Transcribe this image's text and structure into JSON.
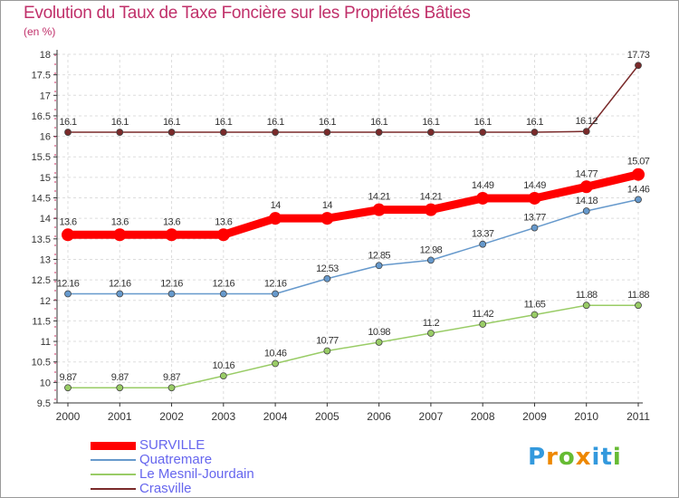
{
  "header": {
    "title": "Evolution du Taux de Taxe Foncière sur les Propriétés Bâties",
    "unit": "(en %)"
  },
  "chart_data": {
    "type": "line",
    "title": "Evolution du Taux de Taxe Foncière sur les Propriétés Bâties",
    "ylabel": "(en %)",
    "xlabel": "",
    "ylim": [
      9.5,
      18
    ],
    "yticks": [
      9.5,
      10,
      10.5,
      11,
      11.5,
      12,
      12.5,
      13,
      13.5,
      14,
      14.5,
      15,
      15.5,
      16,
      16.5,
      17,
      17.5,
      18
    ],
    "ytick_labels": [
      "9.5",
      "10",
      "10.5",
      "11",
      "11.5",
      "12",
      "12.5",
      "13",
      "13.5",
      "14",
      "14.5",
      "15",
      "15.5",
      "16",
      "16.5",
      "17",
      "17.5",
      "18"
    ],
    "grid": true,
    "legend_position": "bottom-left",
    "categories": [
      "2000",
      "2001",
      "2002",
      "2003",
      "2004",
      "2005",
      "2006",
      "2007",
      "2008",
      "2009",
      "2010",
      "2011"
    ],
    "series": [
      {
        "name": "SURVILLE",
        "color": "#ff0000",
        "emphasis": true,
        "values": [
          13.6,
          13.6,
          13.6,
          13.6,
          14,
          14,
          14.21,
          14.21,
          14.49,
          14.49,
          14.77,
          15.07
        ],
        "labels": [
          "13.6",
          "13.6",
          "13.6",
          "13.6",
          "14",
          "14",
          "14.21",
          "14.21",
          "14.49",
          "14.49",
          "14.77",
          "15.07"
        ]
      },
      {
        "name": "Quatremare",
        "color": "#6699cc",
        "emphasis": false,
        "values": [
          12.16,
          12.16,
          12.16,
          12.16,
          12.16,
          12.53,
          12.85,
          12.98,
          13.37,
          13.77,
          14.18,
          14.46
        ],
        "labels": [
          "12.16",
          "12.16",
          "12.16",
          "12.16",
          "12.16",
          "12.53",
          "12.85",
          "12.98",
          "13.37",
          "13.77",
          "14.18",
          "14.46"
        ]
      },
      {
        "name": "Le Mesnil-Jourdain",
        "color": "#99cc66",
        "emphasis": false,
        "values": [
          9.87,
          9.87,
          9.87,
          10.16,
          10.46,
          10.77,
          10.98,
          11.2,
          11.42,
          11.65,
          11.88,
          11.88
        ],
        "labels": [
          "9.87",
          "9.87",
          "9.87",
          "10.16",
          "10.46",
          "10.77",
          "10.98",
          "11.2",
          "11.42",
          "11.65",
          "11.88",
          "11.88"
        ]
      },
      {
        "name": "Crasville",
        "color": "#7a2a2a",
        "emphasis": false,
        "values": [
          16.1,
          16.1,
          16.1,
          16.1,
          16.1,
          16.1,
          16.1,
          16.1,
          16.1,
          16.1,
          16.12,
          17.73
        ],
        "labels": [
          "16.1",
          "16.1",
          "16.1",
          "16.1",
          "16.1",
          "16.1",
          "16.1",
          "16.1",
          "16.1",
          "16.1",
          "16.12",
          "17.73"
        ]
      }
    ]
  },
  "legend": {
    "items": [
      {
        "label": "SURVILLE",
        "color": "#ff0000"
      },
      {
        "label": "Quatremare",
        "color": "#6699cc"
      },
      {
        "label": "Le Mesnil-Jourdain",
        "color": "#99cc66"
      },
      {
        "label": "Crasville",
        "color": "#7a2a2a"
      }
    ],
    "text_color": "#6666ee"
  },
  "logo": {
    "text": "Proxiti",
    "letters": [
      "P",
      "r",
      "o",
      "x",
      "i",
      "t",
      "i"
    ],
    "colors": [
      "#3399dd",
      "#ee8800",
      "#66bb33",
      "#ee8800",
      "#3399dd",
      "#3399dd",
      "#66bb33"
    ]
  },
  "colors": {
    "title": "#c0306a",
    "axis": "#333333",
    "grid": "#dddddd",
    "tick_accent": "#cc3366"
  }
}
